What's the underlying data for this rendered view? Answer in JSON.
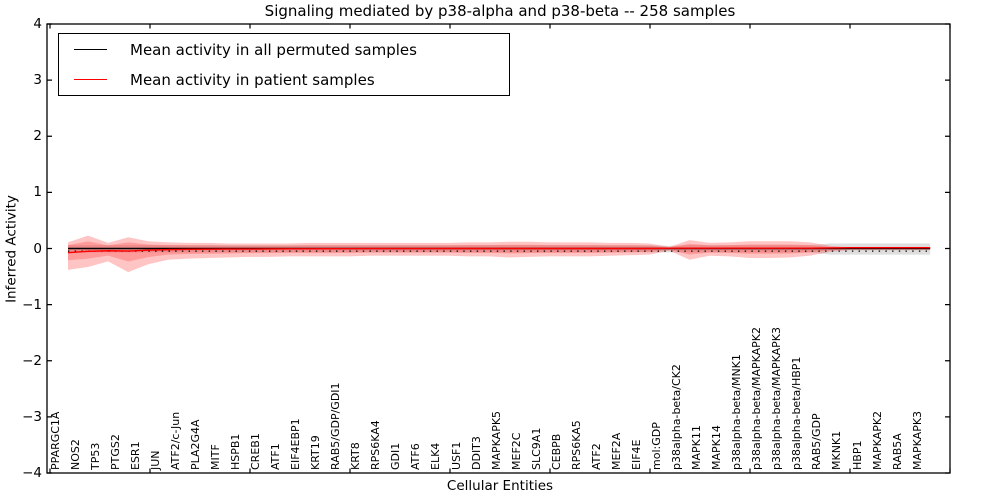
{
  "title": "Signaling mediated by p38-alpha and p38-beta -- 258 samples",
  "axes": {
    "x_label": "Cellular Entities",
    "y_label": "Inferred Activity",
    "y_tick_labels": [
      "4",
      "3",
      "2",
      "1",
      "0",
      "−1",
      "−2",
      "−3",
      "−4"
    ],
    "y_tick_values": [
      4,
      3,
      2,
      1,
      0,
      -1,
      -2,
      -3,
      -4
    ]
  },
  "legend": {
    "items": [
      {
        "label": "Mean activity in all permuted samples",
        "color": "#000000"
      },
      {
        "label": "Mean activity in patient samples",
        "color": "#ff0000"
      }
    ]
  },
  "colors": {
    "patient_line": "#ff0000",
    "permuted_line": "#000000",
    "patient_band": "rgba(255,45,45,0.28)",
    "permuted_band": "rgba(0,0,0,0.13)",
    "frame": "#000000"
  },
  "chart_data": {
    "type": "line",
    "title": "Signaling mediated by p38-alpha and p38-beta -- 258 samples",
    "xlabel": "Cellular Entities",
    "ylabel": "Inferred Activity",
    "ylim": [
      -4,
      4
    ],
    "grid": false,
    "legend_position": "upper left",
    "categories": [
      "PPARGC1A",
      "NOS2",
      "TP53",
      "PTGS2",
      "ESR1",
      "JUN",
      "ATF2/c-Jun",
      "PLA2G4A",
      "MITF",
      "HSPB1",
      "CREB1",
      "ATF1",
      "EIF4EBP1",
      "KRT19",
      "RAB5/GDP/GDI1",
      "KRT8",
      "RPS6KA4",
      "GDI1",
      "ATF6",
      "ELK4",
      "USF1",
      "DDIT3",
      "MAPKAPK5",
      "MEF2C",
      "SLC9A1",
      "CEBPB",
      "RPS6KA5",
      "ATF2",
      "MEF2A",
      "EIF4E",
      "mol:GDP",
      "p38alpha-beta/CK2",
      "MAPK11",
      "MAPK14",
      "p38alpha-beta/MNK1",
      "p38alpha-beta/MAPKAPK2",
      "p38alpha-beta/MAPKAPK3",
      "p38alpha-beta/HBP1",
      "RAB5/GDP",
      "MKNK1",
      "HBP1",
      "MAPKAPK2",
      "RAB5A",
      "MAPKAPK3"
    ],
    "series": [
      {
        "name": "Mean activity in all permuted samples",
        "values": [
          0,
          0,
          0,
          0,
          0,
          0,
          0,
          0,
          0,
          0,
          0,
          0,
          0,
          0,
          0,
          0,
          0,
          0,
          0,
          0,
          0,
          0,
          0,
          0,
          0,
          0,
          0,
          0,
          0,
          0,
          0,
          0,
          0,
          0,
          0,
          0,
          0,
          0,
          0,
          0,
          0,
          0,
          0,
          0
        ]
      },
      {
        "name": "Mean activity in patient samples",
        "values": [
          -0.075,
          -0.05,
          -0.04,
          -0.045,
          -0.03,
          -0.02,
          -0.015,
          -0.012,
          -0.01,
          -0.01,
          -0.008,
          -0.006,
          -0.005,
          -0.004,
          -0.003,
          -0.002,
          -0.002,
          -0.001,
          -0.001,
          0,
          0,
          0,
          0,
          0,
          0,
          0,
          0,
          0,
          0,
          0,
          0.005,
          0.005,
          0.005,
          0.005,
          0.005,
          0.005,
          0.005,
          0.005,
          0.01,
          0.015,
          0.015,
          0.015,
          0.015,
          0.015
        ]
      }
    ],
    "bands": {
      "patient_std_upper": [
        0.11,
        0.23,
        0.1,
        0.2,
        0.13,
        0.11,
        0.1,
        0.1,
        0.09,
        0.09,
        0.09,
        0.09,
        0.1,
        0.1,
        0.1,
        0.1,
        0.1,
        0.1,
        0.1,
        0.1,
        0.11,
        0.11,
        0.12,
        0.12,
        0.11,
        0.11,
        0.11,
        0.1,
        0.1,
        0.09,
        0.03,
        0.15,
        0.1,
        0.11,
        0.13,
        0.13,
        0.13,
        0.11,
        0.05,
        0.02,
        0.02,
        0.02,
        0.02,
        0.02
      ],
      "patient_std_lower": [
        -0.38,
        -0.33,
        -0.23,
        -0.42,
        -0.28,
        -0.2,
        -0.18,
        -0.17,
        -0.16,
        -0.15,
        -0.15,
        -0.14,
        -0.14,
        -0.14,
        -0.14,
        -0.13,
        -0.13,
        -0.13,
        -0.13,
        -0.13,
        -0.14,
        -0.14,
        -0.16,
        -0.15,
        -0.14,
        -0.14,
        -0.14,
        -0.13,
        -0.12,
        -0.11,
        -0.04,
        -0.2,
        -0.13,
        -0.14,
        -0.17,
        -0.17,
        -0.16,
        -0.13,
        -0.06,
        -0.03,
        -0.03,
        -0.03,
        -0.03,
        -0.03
      ],
      "permuted_std_upper": [
        0.06,
        0.06,
        0.06,
        0.06,
        0.06,
        0.06,
        0.06,
        0.06,
        0.06,
        0.06,
        0.06,
        0.06,
        0.06,
        0.06,
        0.06,
        0.06,
        0.06,
        0.06,
        0.06,
        0.06,
        0.06,
        0.06,
        0.06,
        0.06,
        0.06,
        0.06,
        0.06,
        0.06,
        0.06,
        0.06,
        0.05,
        0.06,
        0.06,
        0.06,
        0.06,
        0.06,
        0.06,
        0.06,
        0.09,
        0.09,
        0.09,
        0.09,
        0.09,
        0.09
      ],
      "permuted_std_lower": [
        -0.07,
        -0.07,
        -0.07,
        -0.07,
        -0.07,
        -0.07,
        -0.07,
        -0.07,
        -0.07,
        -0.07,
        -0.07,
        -0.07,
        -0.07,
        -0.07,
        -0.07,
        -0.07,
        -0.07,
        -0.07,
        -0.07,
        -0.07,
        -0.07,
        -0.07,
        -0.07,
        -0.07,
        -0.07,
        -0.07,
        -0.07,
        -0.07,
        -0.07,
        -0.07,
        -0.07,
        -0.07,
        -0.07,
        -0.07,
        -0.07,
        -0.07,
        -0.07,
        -0.07,
        -0.11,
        -0.11,
        -0.11,
        -0.11,
        -0.11,
        -0.11
      ]
    }
  }
}
